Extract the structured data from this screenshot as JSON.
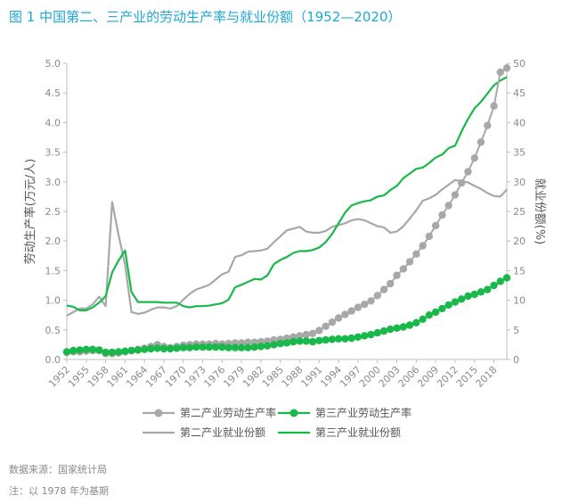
{
  "chart_data": {
    "type": "line",
    "title": "图 1   中国第二、三产业的劳动生产率与就业份额（1952—2020）",
    "ylabel": "劳动生产率(万元/人)",
    "y2label": "就业份额(%)",
    "ylim": [
      0,
      5
    ],
    "y2lim": [
      0,
      50
    ],
    "yticks": [
      "0.0",
      "0.5",
      "1.0",
      "1.5",
      "2.0",
      "2.5",
      "3.0",
      "3.5",
      "4.0",
      "4.5",
      "5.0"
    ],
    "y2ticks": [
      "0",
      "5",
      "10",
      "15",
      "20",
      "25",
      "30",
      "35",
      "40",
      "45",
      "50"
    ],
    "xlim": [
      1952,
      2020
    ],
    "xticks": [
      "1952",
      "1955",
      "1958",
      "1961",
      "1964",
      "1967",
      "1970",
      "1973",
      "1976",
      "1979",
      "1982",
      "1985",
      "1988",
      "1991",
      "1994",
      "1997",
      "2000",
      "2003",
      "2006",
      "2009",
      "2012",
      "2015",
      "2018"
    ],
    "x": [
      1952,
      1953,
      1954,
      1955,
      1956,
      1957,
      1958,
      1959,
      1960,
      1961,
      1962,
      1963,
      1964,
      1965,
      1966,
      1967,
      1968,
      1969,
      1970,
      1971,
      1972,
      1973,
      1974,
      1975,
      1976,
      1977,
      1978,
      1979,
      1980,
      1981,
      1982,
      1983,
      1984,
      1985,
      1986,
      1987,
      1988,
      1989,
      1990,
      1991,
      1992,
      1993,
      1994,
      1995,
      1996,
      1997,
      1998,
      1999,
      2000,
      2001,
      2002,
      2003,
      2004,
      2005,
      2006,
      2007,
      2008,
      2009,
      2010,
      2011,
      2012,
      2013,
      2014,
      2015,
      2016,
      2017,
      2018,
      2019,
      2020
    ],
    "series": [
      {
        "name": "第二产业劳动生产率",
        "axis": "left",
        "color": "#a8a8a8",
        "marker": true,
        "values": [
          0.12,
          0.13,
          0.13,
          0.14,
          0.15,
          0.15,
          0.1,
          0.1,
          0.11,
          0.13,
          0.15,
          0.17,
          0.19,
          0.22,
          0.25,
          0.22,
          0.2,
          0.22,
          0.24,
          0.25,
          0.26,
          0.26,
          0.26,
          0.27,
          0.26,
          0.27,
          0.28,
          0.28,
          0.29,
          0.29,
          0.3,
          0.31,
          0.33,
          0.34,
          0.36,
          0.38,
          0.4,
          0.42,
          0.44,
          0.49,
          0.56,
          0.63,
          0.7,
          0.76,
          0.82,
          0.88,
          0.93,
          0.99,
          1.08,
          1.18,
          1.28,
          1.42,
          1.53,
          1.65,
          1.78,
          1.92,
          2.08,
          2.26,
          2.44,
          2.6,
          2.78,
          2.98,
          3.17,
          3.4,
          3.67,
          3.95,
          4.28,
          4.85,
          4.92
        ]
      },
      {
        "name": "第三产业劳动生产率",
        "axis": "left",
        "color": "#19b84a",
        "marker": true,
        "values": [
          0.13,
          0.15,
          0.16,
          0.17,
          0.17,
          0.16,
          0.12,
          0.12,
          0.13,
          0.14,
          0.15,
          0.16,
          0.17,
          0.18,
          0.19,
          0.18,
          0.18,
          0.19,
          0.2,
          0.2,
          0.21,
          0.21,
          0.21,
          0.21,
          0.21,
          0.2,
          0.2,
          0.2,
          0.2,
          0.21,
          0.22,
          0.23,
          0.25,
          0.27,
          0.28,
          0.3,
          0.31,
          0.31,
          0.3,
          0.32,
          0.33,
          0.34,
          0.35,
          0.35,
          0.36,
          0.38,
          0.4,
          0.42,
          0.45,
          0.48,
          0.51,
          0.53,
          0.55,
          0.58,
          0.62,
          0.68,
          0.75,
          0.8,
          0.86,
          0.92,
          0.97,
          1.02,
          1.07,
          1.1,
          1.14,
          1.18,
          1.25,
          1.32,
          1.38
        ]
      },
      {
        "name": "第二产业就业份额",
        "axis": "right",
        "color": "#a8a8a8",
        "marker": false,
        "values": [
          7.4,
          8.0,
          8.6,
          8.6,
          9.3,
          10.6,
          9.0,
          26.6,
          21.0,
          16.0,
          8.0,
          7.7,
          7.9,
          8.4,
          8.8,
          8.8,
          8.6,
          9.0,
          10.1,
          11.1,
          11.8,
          12.2,
          12.6,
          13.5,
          14.4,
          14.8,
          17.3,
          17.6,
          18.2,
          18.3,
          18.4,
          18.7,
          19.8,
          20.8,
          21.8,
          22.1,
          22.4,
          21.6,
          21.4,
          21.4,
          21.7,
          22.4,
          22.7,
          23.0,
          23.5,
          23.7,
          23.5,
          23.0,
          22.5,
          22.3,
          21.4,
          21.6,
          22.5,
          23.8,
          25.2,
          26.8,
          27.2,
          27.8,
          28.7,
          29.5,
          30.3,
          30.1,
          29.9,
          29.3,
          28.8,
          28.1,
          27.6,
          27.5,
          28.7
        ]
      },
      {
        "name": "第三产业就业份额",
        "axis": "right",
        "color": "#19b84a",
        "marker": false,
        "values": [
          9.1,
          8.9,
          8.3,
          8.3,
          8.8,
          9.6,
          10.7,
          14.7,
          16.7,
          18.4,
          11.4,
          9.7,
          9.7,
          9.7,
          9.7,
          9.6,
          9.6,
          9.6,
          9.0,
          8.8,
          9.0,
          9.0,
          9.1,
          9.3,
          9.5,
          10.1,
          12.2,
          12.6,
          13.1,
          13.6,
          13.5,
          14.2,
          16.1,
          16.8,
          17.3,
          18.0,
          18.3,
          18.3,
          18.5,
          18.9,
          19.8,
          21.2,
          23.0,
          24.8,
          26.0,
          26.4,
          26.7,
          26.9,
          27.5,
          27.7,
          28.6,
          29.3,
          30.6,
          31.4,
          32.2,
          32.4,
          33.2,
          34.1,
          34.6,
          35.7,
          36.1,
          38.5,
          40.6,
          42.4,
          43.5,
          44.9,
          46.3,
          47.1,
          47.7
        ]
      }
    ],
    "legend_position": "bottom",
    "grid": false
  },
  "footnotes": {
    "source": "数据来源：国家统计局",
    "note": "注：以 1978 年为基期"
  }
}
